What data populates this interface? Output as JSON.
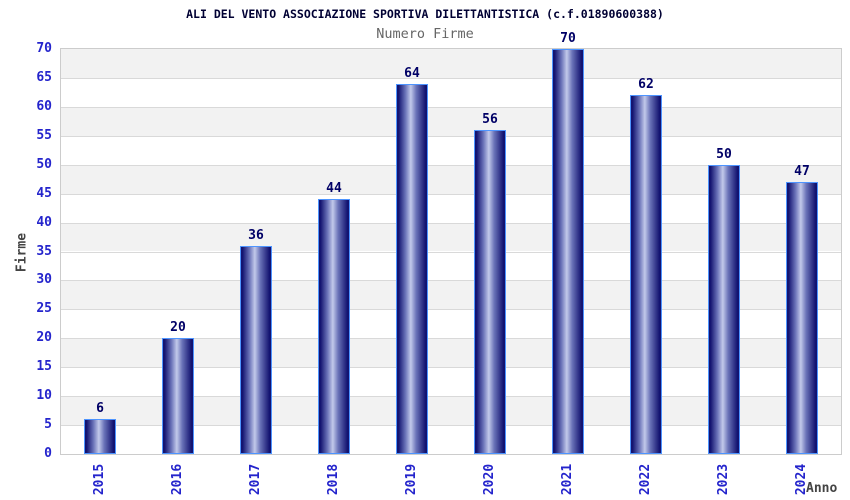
{
  "chart_data": {
    "type": "bar",
    "title": "ALI DEL VENTO ASSOCIAZIONE SPORTIVA DILETTANTISTICA (c.f.01890600388)",
    "subtitle": "Numero Firme",
    "xlabel": "Anno",
    "ylabel": "Firme",
    "categories": [
      "2015",
      "2016",
      "2017",
      "2018",
      "2019",
      "2020",
      "2021",
      "2022",
      "2023",
      "2024"
    ],
    "values": [
      6,
      20,
      36,
      44,
      64,
      56,
      70,
      62,
      50,
      47
    ],
    "ylim": [
      0,
      70
    ],
    "ytick_step": 5,
    "legend": "none",
    "grid": "horizontal-bands",
    "colors": {
      "title_text": "#000033",
      "subtitle_text": "#666666",
      "axis_title_text": "#444444",
      "tick_text": "#2424cc",
      "value_label_text": "#000066",
      "bar_dark": "#131370",
      "bar_mid": "#6a73b8",
      "bar_light": "#c2c9ea",
      "bar_border": "#4d94ff",
      "band_gray": "#f2f2f2",
      "band_white": "#ffffff",
      "gridline": "#d9d9d9",
      "plot_border": "#cccccc",
      "background": "#ffffff"
    }
  }
}
